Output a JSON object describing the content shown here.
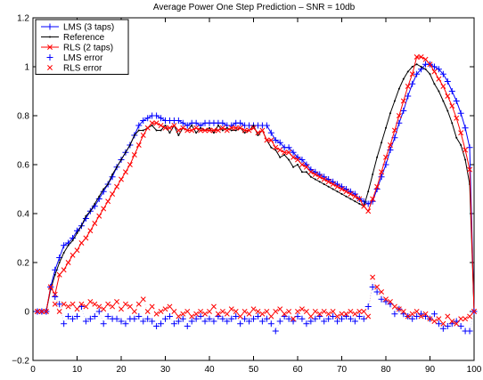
{
  "chart_data": {
    "type": "line",
    "title": "Average Power One Step Prediction – SNR = 10db",
    "xlabel": "",
    "ylabel": "",
    "xlim": [
      0,
      100
    ],
    "ylim": [
      -0.2,
      1.2
    ],
    "xticks": [
      0,
      10,
      20,
      30,
      40,
      50,
      60,
      70,
      80,
      90,
      100
    ],
    "yticks": [
      -0.2,
      0,
      0.2,
      0.4,
      0.6,
      0.8,
      1,
      1.2
    ],
    "ytick_labels": [
      "−0.2",
      "0",
      "0.2",
      "0.4",
      "0.6",
      "0.8",
      "1",
      "1.2"
    ],
    "grid": false,
    "legend_position": "top-left",
    "series": [
      {
        "name": "LMS (3 taps)",
        "style": "line-plus",
        "color": "#0000ff",
        "x": [
          1,
          2,
          3,
          4,
          5,
          6,
          7,
          8,
          9,
          10,
          11,
          12,
          13,
          14,
          15,
          16,
          17,
          18,
          19,
          20,
          21,
          22,
          23,
          24,
          25,
          26,
          27,
          28,
          29,
          30,
          31,
          32,
          33,
          34,
          35,
          36,
          37,
          38,
          39,
          40,
          41,
          42,
          43,
          44,
          45,
          46,
          47,
          48,
          49,
          50,
          51,
          52,
          53,
          54,
          55,
          56,
          57,
          58,
          59,
          60,
          61,
          62,
          63,
          64,
          65,
          66,
          67,
          68,
          69,
          70,
          71,
          72,
          73,
          74,
          75,
          76,
          77,
          78,
          79,
          80,
          81,
          82,
          83,
          84,
          85,
          86,
          87,
          88,
          89,
          90,
          91,
          92,
          93,
          94,
          95,
          96,
          97,
          98,
          99,
          100
        ],
        "values": [
          0,
          0,
          0,
          0.1,
          0.17,
          0.22,
          0.27,
          0.28,
          0.3,
          0.33,
          0.35,
          0.38,
          0.41,
          0.43,
          0.46,
          0.49,
          0.52,
          0.55,
          0.59,
          0.62,
          0.65,
          0.68,
          0.72,
          0.76,
          0.78,
          0.79,
          0.8,
          0.8,
          0.79,
          0.78,
          0.78,
          0.78,
          0.78,
          0.77,
          0.76,
          0.77,
          0.77,
          0.76,
          0.77,
          0.77,
          0.77,
          0.77,
          0.77,
          0.76,
          0.76,
          0.77,
          0.77,
          0.76,
          0.76,
          0.76,
          0.76,
          0.76,
          0.76,
          0.73,
          0.7,
          0.69,
          0.67,
          0.67,
          0.65,
          0.63,
          0.62,
          0.6,
          0.58,
          0.57,
          0.56,
          0.55,
          0.54,
          0.53,
          0.52,
          0.51,
          0.5,
          0.49,
          0.48,
          0.46,
          0.45,
          0.44,
          0.45,
          0.5,
          0.55,
          0.6,
          0.66,
          0.71,
          0.77,
          0.82,
          0.88,
          0.93,
          0.97,
          0.99,
          1.01,
          1.01,
          1.0,
          0.99,
          0.97,
          0.94,
          0.9,
          0.86,
          0.81,
          0.75,
          0.67,
          0
        ]
      },
      {
        "name": "Reference",
        "style": "line-dot",
        "color": "#000000",
        "x": [
          1,
          2,
          3,
          4,
          5,
          6,
          7,
          8,
          9,
          10,
          11,
          12,
          13,
          14,
          15,
          16,
          17,
          18,
          19,
          20,
          21,
          22,
          23,
          24,
          25,
          26,
          27,
          28,
          29,
          30,
          31,
          32,
          33,
          34,
          35,
          36,
          37,
          38,
          39,
          40,
          41,
          42,
          43,
          44,
          45,
          46,
          47,
          48,
          49,
          50,
          51,
          52,
          53,
          54,
          55,
          56,
          57,
          58,
          59,
          60,
          61,
          62,
          63,
          64,
          65,
          66,
          67,
          68,
          69,
          70,
          71,
          72,
          73,
          74,
          75,
          76,
          77,
          78,
          79,
          80,
          81,
          82,
          83,
          84,
          85,
          86,
          87,
          88,
          89,
          90,
          91,
          92,
          93,
          94,
          95,
          96,
          97,
          98,
          99,
          100
        ],
        "values": [
          0,
          0,
          0,
          0.09,
          0.15,
          0.2,
          0.24,
          0.27,
          0.29,
          0.32,
          0.35,
          0.39,
          0.41,
          0.44,
          0.47,
          0.5,
          0.52,
          0.56,
          0.59,
          0.62,
          0.65,
          0.68,
          0.72,
          0.74,
          0.74,
          0.75,
          0.76,
          0.74,
          0.74,
          0.76,
          0.73,
          0.76,
          0.72,
          0.75,
          0.74,
          0.76,
          0.73,
          0.75,
          0.74,
          0.75,
          0.73,
          0.76,
          0.74,
          0.75,
          0.74,
          0.74,
          0.75,
          0.73,
          0.74,
          0.76,
          0.72,
          0.74,
          0.7,
          0.67,
          0.66,
          0.63,
          0.64,
          0.62,
          0.59,
          0.6,
          0.57,
          0.57,
          0.55,
          0.54,
          0.53,
          0.52,
          0.51,
          0.5,
          0.49,
          0.48,
          0.47,
          0.46,
          0.45,
          0.44,
          0.43,
          0.49,
          0.56,
          0.63,
          0.69,
          0.75,
          0.81,
          0.86,
          0.91,
          0.95,
          0.98,
          1.0,
          1.01,
          1.0,
          0.99,
          0.97,
          0.93,
          0.9,
          0.86,
          0.82,
          0.77,
          0.71,
          0.68,
          0.62,
          0.52,
          0
        ]
      },
      {
        "name": "RLS (2 taps)",
        "style": "line-x",
        "color": "#ff0000",
        "x": [
          1,
          2,
          3,
          4,
          5,
          6,
          7,
          8,
          9,
          10,
          11,
          12,
          13,
          14,
          15,
          16,
          17,
          18,
          19,
          20,
          21,
          22,
          23,
          24,
          25,
          26,
          27,
          28,
          29,
          30,
          31,
          32,
          33,
          34,
          35,
          36,
          37,
          38,
          39,
          40,
          41,
          42,
          43,
          44,
          45,
          46,
          47,
          48,
          49,
          50,
          51,
          52,
          53,
          54,
          55,
          56,
          57,
          58,
          59,
          60,
          61,
          62,
          63,
          64,
          65,
          66,
          67,
          68,
          69,
          70,
          71,
          72,
          73,
          74,
          75,
          76,
          77,
          78,
          79,
          80,
          81,
          82,
          83,
          84,
          85,
          86,
          87,
          88,
          89,
          90,
          91,
          92,
          93,
          94,
          95,
          96,
          97,
          98,
          99,
          100
        ],
        "values": [
          0,
          0,
          0,
          0.1,
          0.07,
          0.15,
          0.17,
          0.2,
          0.23,
          0.25,
          0.28,
          0.3,
          0.33,
          0.36,
          0.39,
          0.42,
          0.45,
          0.48,
          0.51,
          0.54,
          0.57,
          0.6,
          0.64,
          0.68,
          0.72,
          0.75,
          0.77,
          0.77,
          0.76,
          0.75,
          0.75,
          0.76,
          0.74,
          0.75,
          0.74,
          0.74,
          0.75,
          0.74,
          0.74,
          0.74,
          0.74,
          0.74,
          0.75,
          0.74,
          0.75,
          0.75,
          0.75,
          0.74,
          0.74,
          0.75,
          0.73,
          0.74,
          0.7,
          0.7,
          0.67,
          0.66,
          0.65,
          0.65,
          0.63,
          0.62,
          0.6,
          0.59,
          0.57,
          0.56,
          0.55,
          0.54,
          0.53,
          0.52,
          0.51,
          0.5,
          0.49,
          0.48,
          0.47,
          0.46,
          0.43,
          0.41,
          0.46,
          0.51,
          0.57,
          0.63,
          0.68,
          0.74,
          0.8,
          0.86,
          0.92,
          0.97,
          1.04,
          1.04,
          1.03,
          1.01,
          0.98,
          0.95,
          0.92,
          0.88,
          0.84,
          0.79,
          0.73,
          0.66,
          0.58,
          0
        ]
      },
      {
        "name": "LMS error",
        "style": "plus",
        "color": "#0000ff",
        "x": [
          1,
          2,
          3,
          4,
          5,
          6,
          7,
          8,
          9,
          10,
          11,
          12,
          13,
          14,
          15,
          16,
          17,
          18,
          19,
          20,
          21,
          22,
          23,
          24,
          25,
          26,
          27,
          28,
          29,
          30,
          31,
          32,
          33,
          34,
          35,
          36,
          37,
          38,
          39,
          40,
          41,
          42,
          43,
          44,
          45,
          46,
          47,
          48,
          49,
          50,
          51,
          52,
          53,
          54,
          55,
          56,
          57,
          58,
          59,
          60,
          61,
          62,
          63,
          64,
          65,
          66,
          67,
          68,
          69,
          70,
          71,
          72,
          73,
          74,
          75,
          76,
          77,
          78,
          79,
          80,
          81,
          82,
          83,
          84,
          85,
          86,
          87,
          88,
          89,
          90,
          91,
          92,
          93,
          94,
          95,
          96,
          97,
          98,
          99,
          100
        ],
        "values": [
          0,
          0,
          0,
          0.1,
          0.06,
          0.03,
          -0.05,
          -0.02,
          -0.03,
          -0.02,
          0.02,
          -0.04,
          -0.03,
          -0.02,
          0.0,
          -0.05,
          -0.02,
          -0.03,
          -0.03,
          -0.04,
          -0.05,
          -0.03,
          -0.03,
          -0.02,
          -0.04,
          -0.03,
          -0.04,
          -0.06,
          -0.05,
          -0.03,
          -0.02,
          -0.05,
          -0.04,
          -0.03,
          -0.06,
          -0.04,
          -0.03,
          -0.02,
          -0.04,
          -0.03,
          -0.04,
          -0.02,
          -0.03,
          -0.04,
          -0.03,
          -0.02,
          -0.05,
          -0.03,
          -0.04,
          -0.03,
          -0.02,
          -0.04,
          -0.03,
          -0.05,
          -0.08,
          -0.04,
          -0.02,
          -0.03,
          -0.04,
          -0.02,
          -0.03,
          -0.05,
          -0.04,
          -0.03,
          -0.02,
          -0.04,
          -0.03,
          -0.02,
          -0.04,
          -0.03,
          -0.02,
          -0.03,
          -0.04,
          -0.02,
          -0.03,
          0.02,
          0.1,
          0.08,
          0.05,
          0.04,
          0.03,
          -0.01,
          0.01,
          -0.01,
          -0.02,
          -0.03,
          -0.02,
          -0.01,
          -0.02,
          -0.03,
          -0.01,
          -0.05,
          -0.07,
          -0.06,
          -0.05,
          -0.04,
          -0.06,
          -0.08,
          -0.08,
          0
        ]
      },
      {
        "name": "RLS error",
        "style": "x",
        "color": "#ff0000",
        "x": [
          1,
          2,
          3,
          4,
          5,
          6,
          7,
          8,
          9,
          10,
          11,
          12,
          13,
          14,
          15,
          16,
          17,
          18,
          19,
          20,
          21,
          22,
          23,
          24,
          25,
          26,
          27,
          28,
          29,
          30,
          31,
          32,
          33,
          34,
          35,
          36,
          37,
          38,
          39,
          40,
          41,
          42,
          43,
          44,
          45,
          46,
          47,
          48,
          49,
          50,
          51,
          52,
          53,
          54,
          55,
          56,
          57,
          58,
          59,
          60,
          61,
          62,
          63,
          64,
          65,
          66,
          67,
          68,
          69,
          70,
          71,
          72,
          73,
          74,
          75,
          76,
          77,
          78,
          79,
          80,
          81,
          82,
          83,
          84,
          85,
          86,
          87,
          88,
          89,
          90,
          91,
          92,
          93,
          94,
          95,
          96,
          97,
          98,
          99,
          100
        ],
        "values": [
          0,
          0,
          0,
          0.1,
          0.03,
          0.0,
          0.03,
          0.02,
          0.03,
          0.01,
          0.03,
          0.02,
          0.04,
          0.03,
          0.02,
          0.01,
          0.03,
          0.02,
          0.04,
          0.01,
          0.03,
          0.02,
          0.0,
          0.03,
          0.05,
          0.0,
          0.02,
          -0.01,
          0.0,
          0.01,
          0.02,
          0.0,
          -0.02,
          -0.01,
          0.0,
          -0.02,
          -0.01,
          0.0,
          -0.01,
          0.0,
          0.02,
          -0.01,
          0.0,
          -0.01,
          0.01,
          0.0,
          -0.02,
          0.0,
          -0.01,
          0.01,
          0.0,
          -0.01,
          0.0,
          -0.02,
          0.0,
          0.01,
          -0.01,
          0.0,
          -0.03,
          0.0,
          0.01,
          0.0,
          -0.02,
          0.0,
          -0.01,
          0.0,
          -0.01,
          0.0,
          -0.02,
          -0.01,
          -0.01,
          0.0,
          -0.01,
          0.0,
          0.0,
          -0.02,
          0.14,
          0.1,
          0.08,
          0.05,
          0.04,
          0.02,
          0.01,
          0.0,
          -0.02,
          -0.01,
          0.0,
          -0.02,
          -0.01,
          -0.03,
          -0.04,
          -0.03,
          -0.05,
          -0.02,
          -0.04,
          -0.05,
          -0.03,
          -0.03,
          -0.02,
          0
        ]
      }
    ]
  }
}
